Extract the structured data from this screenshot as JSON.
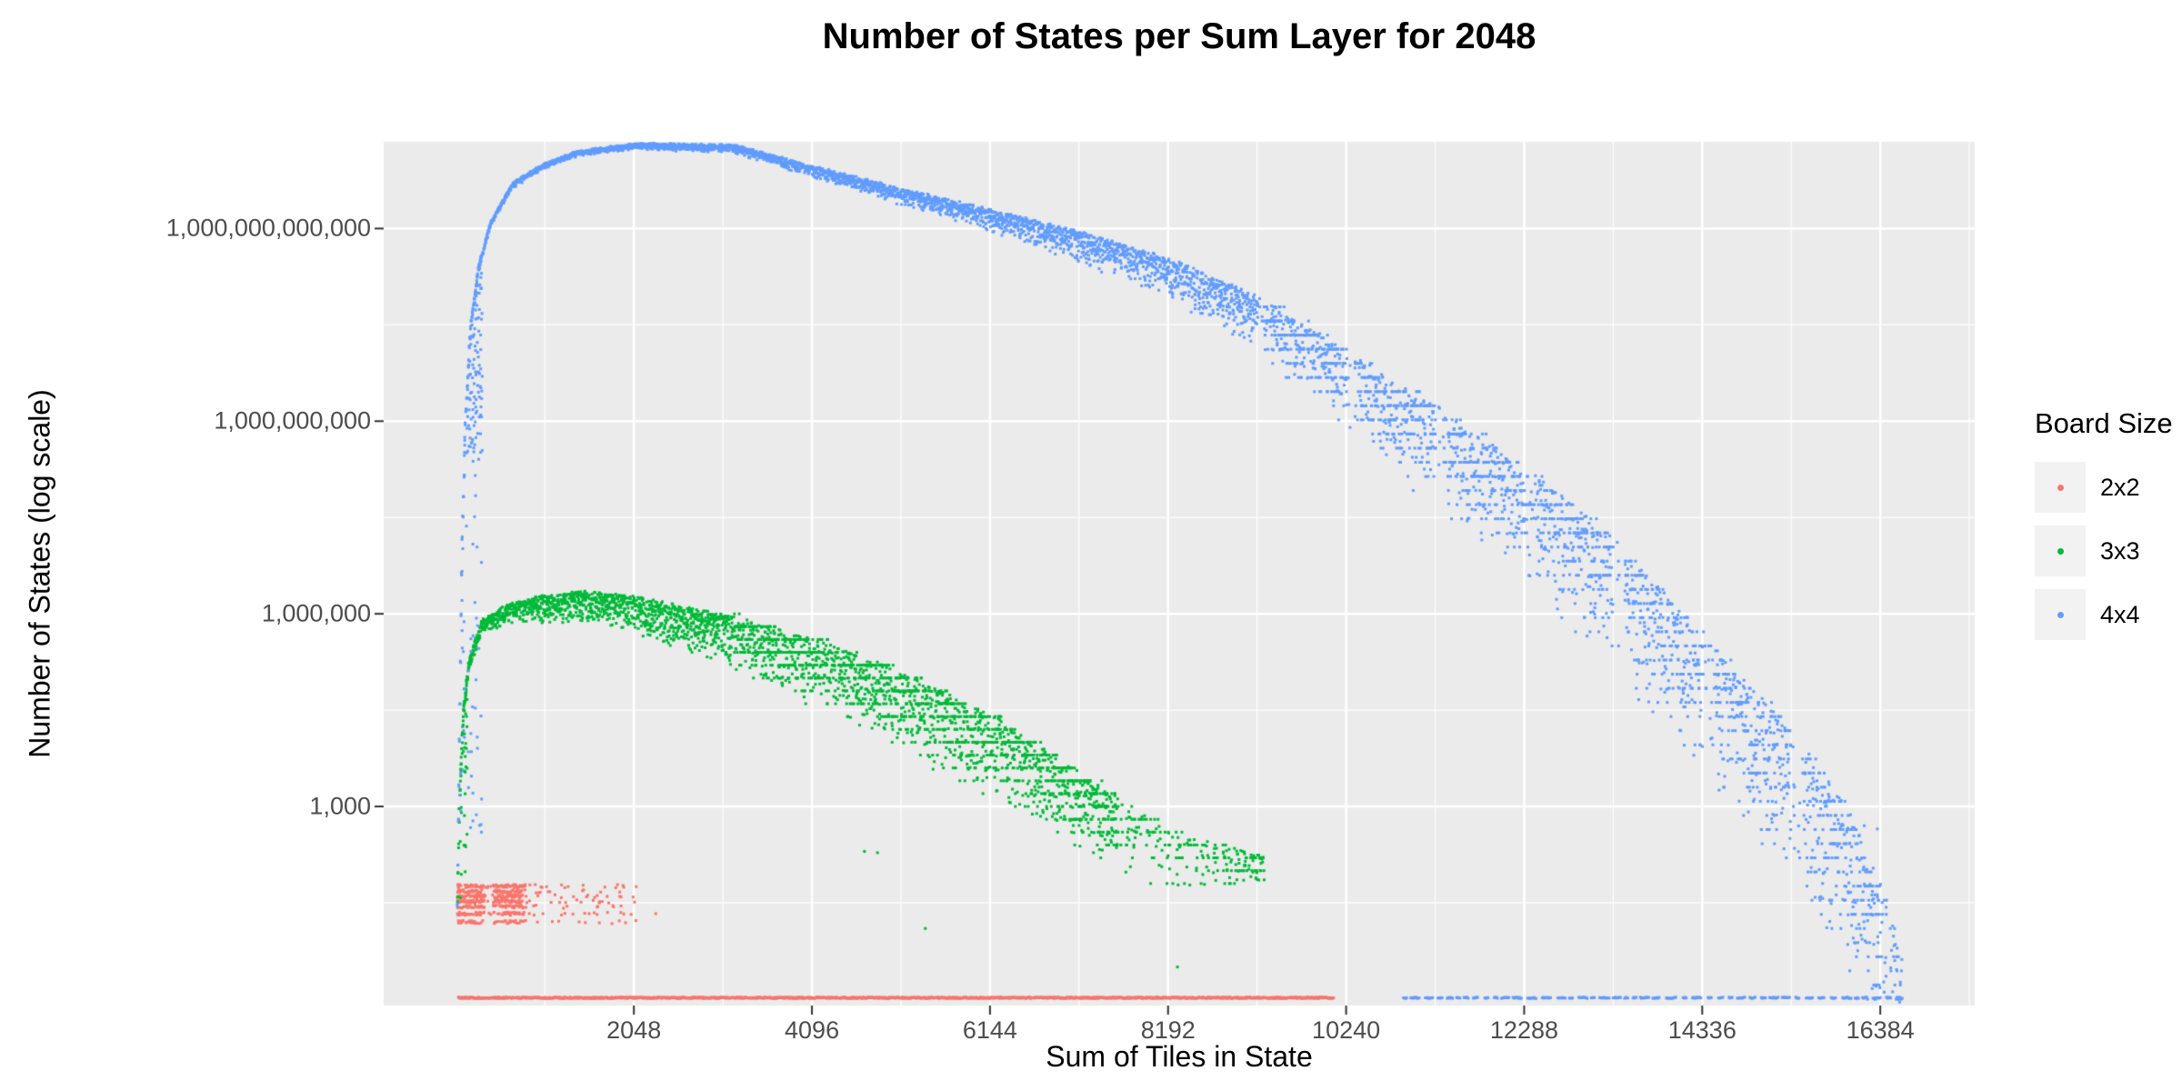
{
  "title": "Number of States per Sum Layer for 2048",
  "axes": {
    "x_label": "Sum of Tiles in State",
    "y_label": "Number of States (log scale)"
  },
  "legend": {
    "title": "Board Size",
    "entries": [
      {
        "label": "2x2",
        "color": "#F8766D"
      },
      {
        "label": "3x3",
        "color": "#00BA38"
      },
      {
        "label": "4x4",
        "color": "#619CFF"
      }
    ]
  },
  "chart_data": {
    "type": "scatter",
    "title": "Number of States per Sum Layer for 2048",
    "xlabel": "Sum of Tiles in State",
    "ylabel": "Number of States (log scale)",
    "x_ticks": [
      2048,
      4096,
      6144,
      8192,
      10240,
      12288,
      14336,
      16384
    ],
    "x_tick_labels": [
      "2048",
      "4096",
      "6144",
      "8192",
      "10240",
      "12288",
      "14336",
      "16384"
    ],
    "y_ticks_log10": [
      3,
      6,
      9,
      12
    ],
    "y_tick_labels": [
      "1,000",
      "1,000,000",
      "1,000,000,000",
      "1,000,000,000,000"
    ],
    "xlim": [
      -830,
      17470
    ],
    "ylim_log10": [
      -0.1,
      13.35
    ],
    "panel_bg": "#EBEBEB",
    "grid_color": "#FFFFFF",
    "tick_mark_color": "#333333",
    "series": [
      {
        "name": "2x2",
        "color": "#F8766D",
        "rows_levels_log10": [
          1.76,
          1.68,
          1.6,
          1.52,
          1.44,
          1.33,
          1.2
        ],
        "rows_x_dense": [
          20,
          820
        ],
        "rows_x_sparse": [
          820,
          2100
        ],
        "bottom_row": {
          "x_range": [
            30,
            10100
          ],
          "level_log10": 0.02,
          "style": "solid"
        },
        "outliers": [
          [
            2300,
            1.33
          ],
          [
            1650,
            1.5
          ],
          [
            1900,
            1.45
          ]
        ]
      },
      {
        "name": "3x3",
        "color": "#00BA38",
        "x_range": [
          18,
          9300
        ],
        "envelope_log10": [
          [
            18,
            1.6
          ],
          [
            40,
            3.0
          ],
          [
            80,
            4.4
          ],
          [
            150,
            5.3
          ],
          [
            300,
            5.9
          ],
          [
            600,
            6.15
          ],
          [
            1000,
            6.28
          ],
          [
            1500,
            6.35
          ],
          [
            2048,
            6.27
          ],
          [
            2600,
            6.12
          ],
          [
            3200,
            5.95
          ],
          [
            4096,
            5.62
          ],
          [
            5120,
            5.1
          ],
          [
            6144,
            4.45
          ],
          [
            7168,
            3.55
          ],
          [
            8192,
            2.6
          ],
          [
            9300,
            2.25
          ]
        ],
        "spread_log10": [
          [
            18,
            0.08
          ],
          [
            1000,
            0.2
          ],
          [
            2500,
            0.32
          ],
          [
            4000,
            0.48
          ],
          [
            6000,
            0.62
          ],
          [
            8000,
            0.5
          ],
          [
            9300,
            0.3
          ]
        ],
        "step": 5,
        "density": 2,
        "left_column": {
          "x_range": [
            18,
            140
          ],
          "down_to_log10": 1.6,
          "sparse_below": 3.5
        },
        "bands": {
          "x_start": 3200,
          "spacing": 0.2,
          "prob": 0.5
        },
        "tail_sparse_from": 7600,
        "outliers": [
          [
            5400,
            1.1
          ],
          [
            8300,
            0.5
          ],
          [
            8750,
            2.35
          ],
          [
            9050,
            2.3
          ],
          [
            4700,
            2.3
          ],
          [
            4850,
            2.28
          ]
        ]
      },
      {
        "name": "4x4",
        "color": "#619CFF",
        "x_range": [
          20,
          16640
        ],
        "envelope_log10": [
          [
            20,
            1.5
          ],
          [
            40,
            4.0
          ],
          [
            70,
            7.0
          ],
          [
            110,
            9.0
          ],
          [
            170,
            10.5
          ],
          [
            260,
            11.4
          ],
          [
            400,
            12.1
          ],
          [
            650,
            12.7
          ],
          [
            1000,
            13.0
          ],
          [
            1400,
            13.2
          ],
          [
            2048,
            13.32
          ],
          [
            3200,
            13.3
          ],
          [
            4096,
            12.97
          ],
          [
            5120,
            12.62
          ],
          [
            6144,
            12.3
          ],
          [
            7168,
            11.95
          ],
          [
            8192,
            11.55
          ],
          [
            9216,
            10.95
          ],
          [
            10240,
            10.1
          ],
          [
            11264,
            9.25
          ],
          [
            12288,
            8.3
          ],
          [
            13312,
            7.2
          ],
          [
            14336,
            5.7
          ],
          [
            15360,
            4.2
          ],
          [
            16000,
            3.0
          ],
          [
            16400,
            1.8
          ],
          [
            16640,
            0.8
          ]
        ],
        "spread_log10": [
          [
            20,
            0.03
          ],
          [
            2048,
            0.04
          ],
          [
            4096,
            0.08
          ],
          [
            6144,
            0.16
          ],
          [
            8192,
            0.3
          ],
          [
            10240,
            0.55
          ],
          [
            12288,
            0.85
          ],
          [
            14336,
            1.05
          ],
          [
            16640,
            1.2
          ]
        ],
        "step": 6,
        "density": 2,
        "left_column": {
          "x_range": [
            20,
            300
          ],
          "down_to_log10": 2.6,
          "sparse_below": 8.5
        },
        "bands": {
          "x_start": 9216,
          "spacing": 0.22,
          "prob": 0.55
        },
        "clump_gaps": {
          "x_start": 9216,
          "period": 1024,
          "width": 150
        },
        "bottom_row": {
          "x_range": [
            10900,
            16640
          ],
          "level_log10": 0.02,
          "style": "dashed"
        },
        "outliers": [
          [
            16550,
            0.6
          ],
          [
            16200,
            2.7
          ],
          [
            16350,
            2.65
          ]
        ]
      }
    ]
  }
}
